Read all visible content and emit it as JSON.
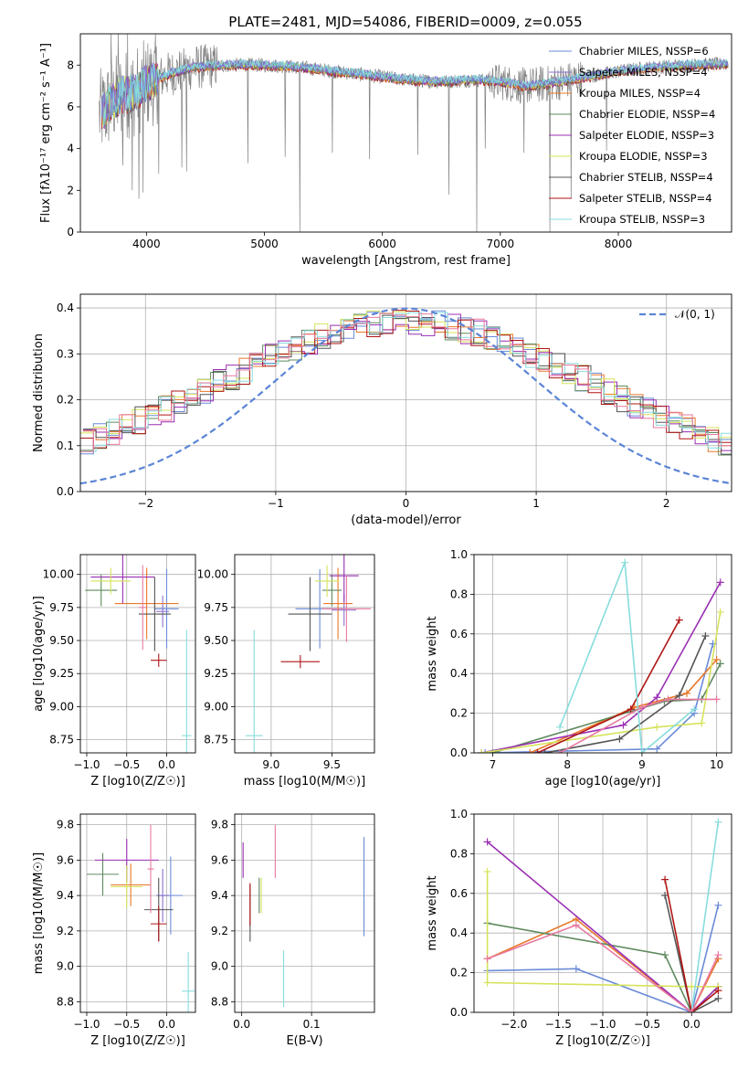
{
  "figure_title": "PLATE=2481, MJD=54086, FIBERID=0009, z=0.055",
  "colors": {
    "ch_miles": "#6a8bd8",
    "sa_miles": "#8c6fd0",
    "kr_miles": "#e8782a",
    "ch_elodie": "#5f8a5f",
    "sa_elodie": "#9b2fb3",
    "kr_elodie": "#d6e35a",
    "ch_stelib": "#555555",
    "sa_stelib": "#b01515",
    "kr_stelib": "#88dcdc",
    "pink": "#e879a0",
    "data": "#808080",
    "normal": "#5b85d6"
  },
  "chart_data": [
    {
      "type": "line",
      "title": "PLATE=2481, MJD=54086, FIBERID=0009, z=0.055",
      "xlabel": "wavelength [Angstrom, rest frame]",
      "ylabel": "Flux [fλ10⁻¹⁷ erg cm⁻² s⁻¹ A⁻¹]",
      "xlim": [
        3440,
        8960
      ],
      "ylim": [
        0,
        9.5
      ],
      "xticks": [
        4000,
        5000,
        6000,
        7000,
        8000
      ],
      "yticks": [
        0,
        2,
        4,
        6,
        8
      ],
      "grid": false,
      "legend_position": "top-right",
      "legend": [
        {
          "text": "Chabrier MILES, NSSP=6",
          "color_key": "ch_miles"
        },
        {
          "text": "Salpeter MILES, NSSP=4",
          "color_key": "sa_miles"
        },
        {
          "text": "Kroupa MILES, NSSP=4",
          "color_key": "kr_miles"
        },
        {
          "text": "Chabrier ELODIE, NSSP=4",
          "color_key": "ch_elodie"
        },
        {
          "text": "Salpeter ELODIE, NSSP=3",
          "color_key": "sa_elodie"
        },
        {
          "text": "Kroupa ELODIE, NSSP=3",
          "color_key": "kr_elodie"
        },
        {
          "text": "Chabrier STELIB, NSSP=4",
          "color_key": "ch_stelib"
        },
        {
          "text": "Salpeter STELIB, NSSP=4",
          "color_key": "sa_stelib"
        },
        {
          "text": "Kroupa STELIB, NSSP=3",
          "color_key": "kr_stelib"
        }
      ],
      "continuum": [
        [
          3600,
          5.6
        ],
        [
          3700,
          6.2
        ],
        [
          3800,
          6.6
        ],
        [
          3900,
          6.7
        ],
        [
          4000,
          7.1
        ],
        [
          4200,
          7.6
        ],
        [
          4400,
          7.9
        ],
        [
          4700,
          8.0
        ],
        [
          5000,
          8.0
        ],
        [
          5300,
          7.9
        ],
        [
          5600,
          7.7
        ],
        [
          5900,
          7.5
        ],
        [
          6200,
          7.3
        ],
        [
          6500,
          7.2
        ],
        [
          6800,
          7.3
        ],
        [
          7000,
          7.2
        ],
        [
          7200,
          7.0
        ],
        [
          7400,
          7.1
        ],
        [
          7700,
          7.4
        ],
        [
          8000,
          7.7
        ],
        [
          8300,
          7.9
        ],
        [
          8600,
          8.0
        ],
        [
          8930,
          8.05
        ]
      ],
      "spikes": [
        {
          "x": 3700,
          "y": 9.5
        },
        {
          "x": 3760,
          "y": 9.5
        },
        {
          "x": 3800,
          "y": 3.2
        },
        {
          "x": 3840,
          "y": 9.5
        },
        {
          "x": 3880,
          "y": 2.0
        },
        {
          "x": 3935,
          "y": 1.6
        },
        {
          "x": 3970,
          "y": 1.9
        },
        {
          "x": 4102,
          "y": 2.8
        },
        {
          "x": 4300,
          "y": 3.1
        },
        {
          "x": 4340,
          "y": 2.9
        },
        {
          "x": 4861,
          "y": 3.3
        },
        {
          "x": 5175,
          "y": 3.6
        },
        {
          "x": 5300,
          "y": 0.0
        },
        {
          "x": 5577,
          "y": 3.8
        },
        {
          "x": 5890,
          "y": 3.5
        },
        {
          "x": 6300,
          "y": 3.7
        },
        {
          "x": 6563,
          "y": 1.8
        },
        {
          "x": 6800,
          "y": 0.0
        },
        {
          "x": 6870,
          "y": 4.0
        },
        {
          "x": 7200,
          "y": 3.8
        },
        {
          "x": 7420,
          "y": 0.0
        },
        {
          "x": 7600,
          "y": 1.6
        },
        {
          "x": 7900,
          "y": 3.9
        }
      ]
    },
    {
      "type": "histogram",
      "xlabel": "(data-model)/error",
      "ylabel": "Normed distribution",
      "xlim": [
        -2.5,
        2.5
      ],
      "ylim": [
        0,
        0.43
      ],
      "xticks": [
        -2,
        -1,
        0,
        1,
        2
      ],
      "yticks": [
        0.0,
        0.1,
        0.2,
        0.3,
        0.4
      ],
      "grid": true,
      "legend_position": "top-right",
      "legend": [
        {
          "text": "𝒩(0, 1)",
          "color_key": "normal"
        }
      ],
      "bin_width": 0.1,
      "reference_curve": "standard normal density"
    },
    {
      "type": "scatter",
      "xlabel": "Z [log10(Z/Z☉)]",
      "ylabel": "age  [log10(age/yr)]",
      "xlim": [
        -1.08,
        0.36
      ],
      "ylim": [
        8.65,
        10.15
      ],
      "xticks": [
        -1.0,
        -0.5,
        0.0
      ],
      "yticks": [
        8.75,
        9.0,
        9.25,
        9.5,
        9.75,
        10.0
      ],
      "grid": true,
      "points": [
        {
          "color_key": "ch_miles",
          "x": 0.0,
          "xerr": 0.15,
          "y": 9.74,
          "yerr": 0.3
        },
        {
          "color_key": "sa_miles",
          "x": -0.05,
          "xerr": 0.08,
          "y": 9.72,
          "yerr": 0.12
        },
        {
          "color_key": "kr_miles",
          "x": -0.25,
          "xerr": 0.4,
          "y": 9.78,
          "yerr": 0.27
        },
        {
          "color_key": "ch_elodie",
          "x": -0.82,
          "xerr": 0.2,
          "y": 9.88,
          "yerr": 0.12
        },
        {
          "color_key": "sa_elodie",
          "x": -0.55,
          "xerr": 0.4,
          "y": 9.98,
          "yerr": 0.2
        },
        {
          "color_key": "kr_elodie",
          "x": -0.7,
          "xerr": 0.25,
          "y": 9.95,
          "yerr": 0.1
        },
        {
          "color_key": "ch_stelib",
          "x": -0.15,
          "xerr": 0.2,
          "y": 9.7,
          "yerr": 0.28
        },
        {
          "color_key": "sa_stelib",
          "x": -0.1,
          "xerr": 0.1,
          "y": 9.35,
          "yerr": 0.05
        },
        {
          "color_key": "kr_stelib",
          "x": 0.25,
          "xerr": 0.06,
          "y": 8.78,
          "yerr": 0.8
        },
        {
          "color_key": "pink",
          "x": -0.3,
          "xerr": 0.05,
          "y": 9.75,
          "yerr": 0.32
        }
      ]
    },
    {
      "type": "scatter",
      "xlabel": "mass [log10(M/M☉)]",
      "ylabel": "",
      "xlim": [
        8.7,
        9.85
      ],
      "ylim": [
        8.65,
        10.15
      ],
      "xticks": [
        9.0,
        9.5
      ],
      "yticks": [
        8.75,
        9.0,
        9.25,
        9.5,
        9.75,
        10.0
      ],
      "grid": true,
      "points": [
        {
          "color_key": "ch_miles",
          "x": 9.4,
          "xerr": 0.2,
          "y": 9.74,
          "yerr": 0.3
        },
        {
          "color_key": "sa_miles",
          "x": 9.6,
          "xerr": 0.1,
          "y": 9.73,
          "yerr": 0.12
        },
        {
          "color_key": "kr_miles",
          "x": 9.55,
          "xerr": 0.12,
          "y": 9.78,
          "yerr": 0.27
        },
        {
          "color_key": "ch_elodie",
          "x": 9.5,
          "xerr": 0.08,
          "y": 9.88,
          "yerr": 0.12
        },
        {
          "color_key": "sa_elodie",
          "x": 9.6,
          "xerr": 0.12,
          "y": 9.99,
          "yerr": 0.2
        },
        {
          "color_key": "kr_elodie",
          "x": 9.46,
          "xerr": 0.1,
          "y": 9.95,
          "yerr": 0.12
        },
        {
          "color_key": "ch_stelib",
          "x": 9.32,
          "xerr": 0.18,
          "y": 9.7,
          "yerr": 0.28
        },
        {
          "color_key": "sa_stelib",
          "x": 9.24,
          "xerr": 0.16,
          "y": 9.34,
          "yerr": 0.05
        },
        {
          "color_key": "kr_stelib",
          "x": 8.86,
          "xerr": 0.07,
          "y": 8.78,
          "yerr": 0.8
        },
        {
          "color_key": "pink",
          "x": 9.62,
          "xerr": 0.2,
          "y": 9.74,
          "yerr": 0.25
        }
      ]
    },
    {
      "type": "line",
      "xlabel": "age  [log10(age/yr)]",
      "ylabel": "mass weight",
      "xlim": [
        6.75,
        10.2
      ],
      "ylim": [
        0,
        1.0
      ],
      "xticks": [
        7,
        8,
        9,
        10
      ],
      "yticks": [
        0.0,
        0.2,
        0.4,
        0.6,
        0.8,
        1.0
      ],
      "grid": true,
      "series": [
        {
          "color_key": "ch_miles",
          "x": [
            6.9,
            9.2,
            9.7,
            9.95
          ],
          "y": [
            0.0,
            0.02,
            0.2,
            0.55
          ]
        },
        {
          "color_key": "kr_miles",
          "x": [
            7.5,
            8.9,
            9.6,
            10.0
          ],
          "y": [
            0.0,
            0.23,
            0.3,
            0.47
          ]
        },
        {
          "color_key": "ch_elodie",
          "x": [
            7.0,
            9.3,
            9.8,
            10.05
          ],
          "y": [
            0.0,
            0.26,
            0.27,
            0.45
          ]
        },
        {
          "color_key": "sa_elodie",
          "x": [
            6.85,
            8.75,
            9.2,
            10.05
          ],
          "y": [
            0.0,
            0.14,
            0.28,
            0.86
          ]
        },
        {
          "color_key": "kr_elodie",
          "x": [
            6.85,
            9.2,
            9.8,
            10.05
          ],
          "y": [
            0.0,
            0.13,
            0.15,
            0.71
          ]
        },
        {
          "color_key": "ch_stelib",
          "x": [
            7.7,
            8.7,
            9.5,
            9.85
          ],
          "y": [
            0.0,
            0.07,
            0.29,
            0.59
          ]
        },
        {
          "color_key": "sa_stelib",
          "x": [
            7.6,
            8.85,
            9.5
          ],
          "y": [
            0.0,
            0.22,
            0.67
          ]
        },
        {
          "color_key": "kr_stelib",
          "x": [
            7.9,
            8.77,
            9.0,
            9.7
          ],
          "y": [
            0.13,
            0.96,
            0.0,
            0.22
          ]
        },
        {
          "color_key": "pink",
          "x": [
            7.9,
            9.0,
            9.35,
            10.0
          ],
          "y": [
            0.0,
            0.23,
            0.27,
            0.27
          ]
        }
      ]
    },
    {
      "type": "scatter",
      "xlabel": "Z [log10(Z/Z☉)]",
      "ylabel": "mass [log10(M/M☉)]",
      "xlim": [
        -1.08,
        0.36
      ],
      "ylim": [
        8.74,
        9.86
      ],
      "xticks": [
        -1.0,
        -0.5,
        0.0
      ],
      "yticks": [
        8.8,
        9.0,
        9.2,
        9.4,
        9.6,
        9.8
      ],
      "grid": true,
      "points": [
        {
          "color_key": "ch_miles",
          "x": 0.05,
          "xerr": 0.15,
          "y": 9.4,
          "yerr": 0.22
        },
        {
          "color_key": "sa_miles",
          "x": -0.05,
          "xerr": 0.08,
          "y": 9.4,
          "yerr": 0.15
        },
        {
          "color_key": "kr_miles",
          "x": -0.45,
          "xerr": 0.25,
          "y": 9.46,
          "yerr": 0.12
        },
        {
          "color_key": "ch_elodie",
          "x": -0.8,
          "xerr": 0.2,
          "y": 9.52,
          "yerr": 0.12
        },
        {
          "color_key": "sa_elodie",
          "x": -0.5,
          "xerr": 0.4,
          "y": 9.6,
          "yerr": 0.12
        },
        {
          "color_key": "kr_elodie",
          "x": -0.5,
          "xerr": 0.2,
          "y": 9.45,
          "yerr": 0.12
        },
        {
          "color_key": "ch_stelib",
          "x": -0.1,
          "xerr": 0.18,
          "y": 9.32,
          "yerr": 0.18
        },
        {
          "color_key": "sa_stelib",
          "x": -0.1,
          "xerr": 0.1,
          "y": 9.24,
          "yerr": 0.1
        },
        {
          "color_key": "kr_stelib",
          "x": 0.27,
          "xerr": 0.08,
          "y": 8.86,
          "yerr": 0.22
        },
        {
          "color_key": "pink",
          "x": -0.2,
          "xerr": 0.04,
          "y": 9.55,
          "yerr": 0.25
        }
      ]
    },
    {
      "type": "scatter",
      "xlabel": "E(B-V)",
      "ylabel": "",
      "xlim": [
        -0.01,
        0.19
      ],
      "ylim": [
        8.74,
        9.86
      ],
      "xticks": [
        0.0,
        0.1
      ],
      "yticks": [
        8.8,
        9.0,
        9.2,
        9.4,
        9.6,
        9.8
      ],
      "grid": true,
      "points": [
        {
          "color_key": "ch_miles",
          "x": 0.175,
          "y": 9.45,
          "yerr": 0.28
        },
        {
          "color_key": "sa_elodie",
          "x": 0.002,
          "y": 9.6,
          "yerr": 0.1
        },
        {
          "color_key": "ch_stelib",
          "x": 0.012,
          "y": 9.3,
          "yerr": 0.16
        },
        {
          "color_key": "sa_stelib",
          "x": 0.012,
          "y": 9.35,
          "yerr": 0.12
        },
        {
          "color_key": "ch_elodie",
          "x": 0.025,
          "y": 9.4,
          "yerr": 0.1
        },
        {
          "color_key": "kr_elodie",
          "x": 0.028,
          "y": 9.4,
          "yerr": 0.1
        },
        {
          "color_key": "pink",
          "x": 0.048,
          "y": 9.65,
          "yerr": 0.15
        },
        {
          "color_key": "kr_stelib",
          "x": 0.06,
          "y": 8.93,
          "yerr": 0.16
        }
      ]
    },
    {
      "type": "line",
      "xlabel": "Z [log10(Z/Z☉)]",
      "ylabel": "mass weight",
      "xlim": [
        -2.45,
        0.45
      ],
      "ylim": [
        0,
        1.0
      ],
      "xticks": [
        -2.0,
        -1.5,
        -1.0,
        -0.5,
        0.0
      ],
      "yticks": [
        0.0,
        0.2,
        0.4,
        0.6,
        0.8,
        1.0
      ],
      "grid": true,
      "series": [
        {
          "color_key": "ch_miles",
          "x": [
            -2.3,
            -1.3,
            0.0,
            0.3
          ],
          "y": [
            0.21,
            0.22,
            0.0,
            0.54
          ]
        },
        {
          "color_key": "kr_miles",
          "x": [
            -2.3,
            -1.3,
            0.0,
            0.3
          ],
          "y": [
            0.27,
            0.47,
            0.0,
            0.27
          ]
        },
        {
          "color_key": "ch_elodie",
          "x": [
            -2.3,
            -0.3,
            0.0,
            0.3
          ],
          "y": [
            0.45,
            0.29,
            0.0,
            0.13
          ]
        },
        {
          "color_key": "sa_elodie",
          "x": [
            -2.3,
            0.0,
            0.3
          ],
          "y": [
            0.86,
            0.0,
            0.13
          ]
        },
        {
          "color_key": "kr_elodie",
          "x": [
            -2.3,
            -2.3,
            0.0,
            0.3
          ],
          "y": [
            0.71,
            0.15,
            0.13,
            0.13
          ]
        },
        {
          "color_key": "ch_stelib",
          "x": [
            -0.3,
            0.0,
            0.3
          ],
          "y": [
            0.59,
            0.0,
            0.07
          ]
        },
        {
          "color_key": "sa_stelib",
          "x": [
            -0.3,
            0.0,
            0.3
          ],
          "y": [
            0.67,
            0.0,
            0.11
          ]
        },
        {
          "color_key": "kr_stelib",
          "x": [
            0.0,
            0.3
          ],
          "y": [
            0.0,
            0.96
          ]
        },
        {
          "color_key": "pink",
          "x": [
            -2.3,
            -1.3,
            0.0,
            0.3
          ],
          "y": [
            0.27,
            0.44,
            0.0,
            0.29
          ]
        }
      ]
    }
  ]
}
